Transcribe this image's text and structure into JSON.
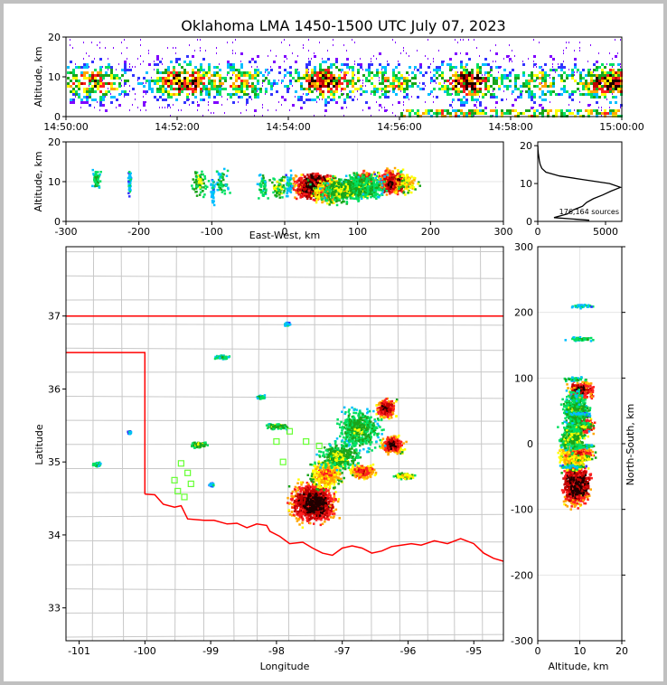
{
  "chart_data": {
    "type": "heatmap",
    "title": "Oklahoma LMA 1450-1500 UTC July 07, 2023",
    "colormap": [
      "#7f00ff",
      "#3333ff",
      "#00bfff",
      "#00e060",
      "#1aa51a",
      "#ffff00",
      "#ffa500",
      "#ff2020",
      "#c00000",
      "#200000"
    ],
    "boundary_color": "#ff0000",
    "county_color": "#c8c8c8",
    "station_marker_color": "#66ff33",
    "panels": [
      {
        "id": "time-height",
        "ylabel": "Altitude, km",
        "ylim": [
          0,
          20
        ],
        "yticks": [
          "0",
          "10",
          "20"
        ],
        "xlim_minutes": [
          0,
          10
        ],
        "xticks": [
          "14:50:00",
          "14:52:00",
          "14:54:00",
          "14:56:00",
          "14:58:00",
          "15:00:00"
        ]
      },
      {
        "id": "ew-height",
        "xlabel": "East-West, km",
        "ylabel": "Altitude, km",
        "xlim": [
          -300,
          300
        ],
        "ylim": [
          0,
          20
        ],
        "xticks": [
          "-300",
          "-200",
          "-100",
          "0",
          "100",
          "200",
          "300"
        ],
        "yticks": [
          "0",
          "10",
          "20"
        ]
      },
      {
        "id": "altitude-histogram",
        "xlim": [
          0,
          6200
        ],
        "ylim": [
          0,
          21
        ],
        "xticks": [
          "0",
          "5000"
        ],
        "yticks": [
          "0",
          "10",
          "20"
        ],
        "annotation": "176,164 sources",
        "profile_altitude_km": [
          0.3,
          1,
          2,
          3,
          4,
          5,
          6,
          7,
          8,
          9,
          10,
          11,
          12,
          13,
          14,
          15,
          16,
          17,
          18,
          19,
          20
        ],
        "profile_count": [
          3800,
          1200,
          2200,
          2600,
          3300,
          3600,
          4100,
          4800,
          5400,
          6100,
          5300,
          3400,
          1600,
          600,
          300,
          180,
          120,
          80,
          40,
          15,
          5
        ]
      },
      {
        "id": "plan-view",
        "xlabel": "Longitude",
        "ylabel": "Latitude",
        "xlim": [
          -101.2,
          -94.55
        ],
        "ylim": [
          32.55,
          37.95
        ],
        "xticks": [
          "-101",
          "-100",
          "-99",
          "-98",
          "-97",
          "-96",
          "-95"
        ],
        "yticks": [
          "33",
          "34",
          "35",
          "36",
          "37"
        ]
      },
      {
        "id": "ns-height",
        "xlabel": "Altitude, km",
        "ylabel": "North-South, km",
        "xlim": [
          0,
          20
        ],
        "ylim": [
          -300,
          300
        ],
        "xticks": [
          "0",
          "10",
          "20"
        ],
        "yticks": [
          "-300",
          "-200",
          "-100",
          "0",
          "100",
          "200",
          "300"
        ]
      }
    ],
    "storm_cells": [
      {
        "lon": -97.45,
        "lat": 34.45,
        "alt_km": 9,
        "rx_km": 40,
        "ry_km": 40,
        "density": 1.0
      },
      {
        "lon": -97.25,
        "lat": 34.85,
        "alt_km": 8,
        "rx_km": 30,
        "ry_km": 30,
        "density": 0.7
      },
      {
        "lon": -96.7,
        "lat": 34.88,
        "alt_km": 10,
        "rx_km": 25,
        "ry_km": 14,
        "density": 0.8
      },
      {
        "lon": -96.25,
        "lat": 35.25,
        "alt_km": 10,
        "rx_km": 20,
        "ry_km": 18,
        "density": 0.9
      },
      {
        "lon": -96.35,
        "lat": 35.75,
        "alt_km": 10,
        "rx_km": 18,
        "ry_km": 20,
        "density": 0.9
      },
      {
        "lon": -96.75,
        "lat": 35.45,
        "alt_km": 9,
        "rx_km": 40,
        "ry_km": 40,
        "density": 0.45
      },
      {
        "lon": -97.05,
        "lat": 35.1,
        "alt_km": 8,
        "rx_km": 35,
        "ry_km": 25,
        "density": 0.5
      },
      {
        "lon": -96.05,
        "lat": 34.82,
        "alt_km": 10,
        "rx_km": 20,
        "ry_km": 6,
        "density": 0.6
      },
      {
        "lon": -98.0,
        "lat": 35.5,
        "alt_km": 9,
        "rx_km": 20,
        "ry_km": 6,
        "density": 0.5
      },
      {
        "lon": -98.25,
        "lat": 35.9,
        "alt_km": 9,
        "rx_km": 8,
        "ry_km": 4,
        "density": 0.4
      },
      {
        "lon": -99.2,
        "lat": 35.25,
        "alt_km": 10,
        "rx_km": 15,
        "ry_km": 6,
        "density": 0.5
      },
      {
        "lon": -98.85,
        "lat": 36.45,
        "alt_km": 10,
        "rx_km": 15,
        "ry_km": 4,
        "density": 0.4
      },
      {
        "lon": -97.85,
        "lat": 36.9,
        "alt_km": 10,
        "rx_km": 6,
        "ry_km": 4,
        "density": 0.3
      },
      {
        "lon": -100.75,
        "lat": 34.98,
        "alt_km": 11,
        "rx_km": 8,
        "ry_km": 4,
        "density": 0.4
      },
      {
        "lon": -99.0,
        "lat": 34.7,
        "alt_km": 8,
        "rx_km": 4,
        "ry_km": 3,
        "density": 0.3
      },
      {
        "lon": -100.25,
        "lat": 35.42,
        "alt_km": 10,
        "rx_km": 3,
        "ry_km": 3,
        "density": 0.3
      }
    ],
    "stations": [
      {
        "lon": -97.8,
        "lat": 35.42
      },
      {
        "lon": -98.0,
        "lat": 35.28
      },
      {
        "lon": -97.55,
        "lat": 35.28
      },
      {
        "lon": -97.9,
        "lat": 35.0
      },
      {
        "lon": -97.35,
        "lat": 35.22
      },
      {
        "lon": -99.45,
        "lat": 34.98
      },
      {
        "lon": -99.35,
        "lat": 34.85
      },
      {
        "lon": -99.55,
        "lat": 34.75
      },
      {
        "lon": -99.3,
        "lat": 34.7
      },
      {
        "lon": -99.5,
        "lat": 34.6
      },
      {
        "lon": -99.4,
        "lat": 34.52
      }
    ],
    "state_boundary": [
      [
        -103,
        37.0
      ],
      [
        -94.55,
        37.0
      ]
    ],
    "panhandle_boundary": [
      [
        -101.2,
        36.5
      ],
      [
        -100.0,
        36.5
      ],
      [
        -100.0,
        34.56
      ]
    ],
    "red_river": [
      [
        -100.0,
        34.56
      ],
      [
        -99.85,
        34.55
      ],
      [
        -99.72,
        34.42
      ],
      [
        -99.55,
        34.38
      ],
      [
        -99.45,
        34.4
      ],
      [
        -99.35,
        34.22
      ],
      [
        -99.1,
        34.2
      ],
      [
        -98.95,
        34.2
      ],
      [
        -98.75,
        34.15
      ],
      [
        -98.6,
        34.16
      ],
      [
        -98.45,
        34.1
      ],
      [
        -98.3,
        34.15
      ],
      [
        -98.15,
        34.13
      ],
      [
        -98.1,
        34.05
      ],
      [
        -97.95,
        33.98
      ],
      [
        -97.8,
        33.88
      ],
      [
        -97.6,
        33.9
      ],
      [
        -97.45,
        33.82
      ],
      [
        -97.3,
        33.75
      ],
      [
        -97.15,
        33.72
      ],
      [
        -97.0,
        33.82
      ],
      [
        -96.85,
        33.85
      ],
      [
        -96.7,
        33.82
      ],
      [
        -96.55,
        33.75
      ],
      [
        -96.4,
        33.78
      ],
      [
        -96.25,
        33.84
      ],
      [
        -96.1,
        33.86
      ],
      [
        -95.95,
        33.88
      ],
      [
        -95.8,
        33.86
      ],
      [
        -95.6,
        33.92
      ],
      [
        -95.4,
        33.88
      ],
      [
        -95.2,
        33.95
      ],
      [
        -95.0,
        33.88
      ],
      [
        -94.85,
        33.75
      ],
      [
        -94.7,
        33.68
      ],
      [
        -94.55,
        33.64
      ]
    ]
  }
}
